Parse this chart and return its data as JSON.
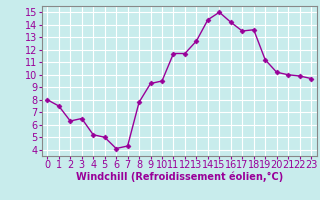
{
  "x": [
    0,
    1,
    2,
    3,
    4,
    5,
    6,
    7,
    8,
    9,
    10,
    11,
    12,
    13,
    14,
    15,
    16,
    17,
    18,
    19,
    20,
    21,
    22,
    23
  ],
  "y": [
    8.0,
    7.5,
    6.3,
    6.5,
    5.2,
    5.0,
    4.1,
    4.3,
    7.8,
    9.3,
    9.5,
    11.7,
    11.7,
    12.7,
    14.4,
    15.0,
    14.2,
    13.5,
    13.6,
    11.2,
    10.2,
    10.0,
    9.9,
    9.7
  ],
  "line_color": "#990099",
  "marker": "D",
  "marker_size": 2.5,
  "bg_color": "#c8ecec",
  "grid_color": "#b0d8d8",
  "xlabel": "Windchill (Refroidissement éolien,°C)",
  "xlabel_color": "#990099",
  "xlabel_fontsize": 7,
  "tick_color": "#990099",
  "tick_fontsize": 7,
  "ylim": [
    3.5,
    15.5
  ],
  "xlim": [
    -0.5,
    23.5
  ],
  "yticks": [
    4,
    5,
    6,
    7,
    8,
    9,
    10,
    11,
    12,
    13,
    14,
    15
  ],
  "xticks": [
    0,
    1,
    2,
    3,
    4,
    5,
    6,
    7,
    8,
    9,
    10,
    11,
    12,
    13,
    14,
    15,
    16,
    17,
    18,
    19,
    20,
    21,
    22,
    23
  ],
  "line_width": 1.0,
  "spine_color": "#888888"
}
